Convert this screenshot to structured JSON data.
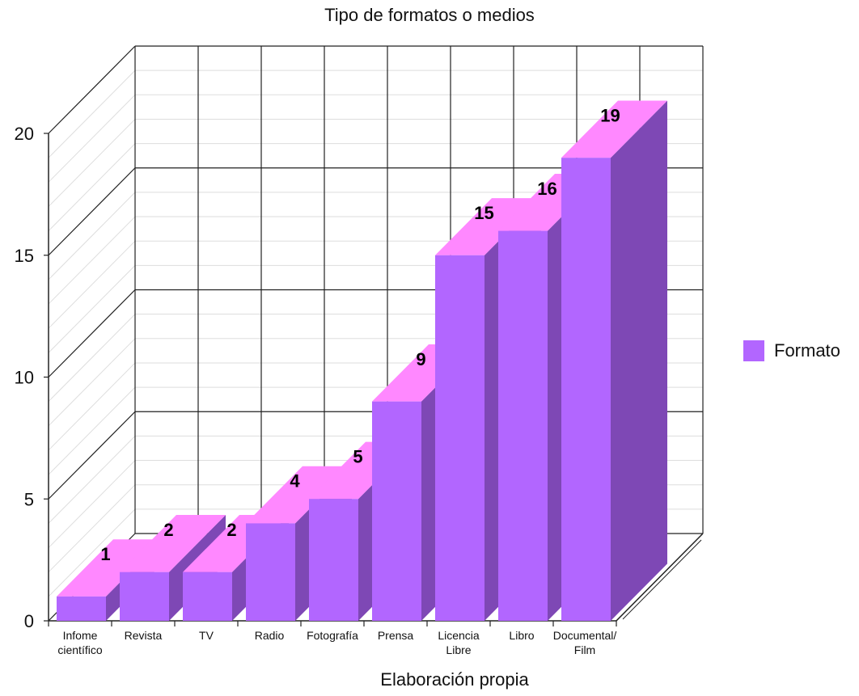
{
  "chart_data": {
    "type": "bar",
    "title": "Tipo de formatos o medios",
    "xlabel": "Elaboración propia",
    "ylabel": "",
    "ylim": [
      0,
      20
    ],
    "yticks": [
      0,
      5,
      10,
      15,
      20
    ],
    "grid": true,
    "legend_position": "right",
    "categories": [
      [
        "Infome",
        "científico"
      ],
      [
        "Revista"
      ],
      [
        "TV"
      ],
      [
        "Radio"
      ],
      [
        "Fotografía"
      ],
      [
        "Prensa"
      ],
      [
        "Licencia",
        "Libre"
      ],
      [
        "Libro"
      ],
      [
        "Documental/",
        "Film"
      ]
    ],
    "series": [
      {
        "name": "Formato",
        "values": [
          1,
          2,
          2,
          4,
          5,
          9,
          15,
          16,
          19
        ],
        "data_labels": [
          "1",
          "2",
          "2",
          "4",
          "5",
          "9",
          "15",
          "16",
          "19"
        ]
      }
    ],
    "colors": {
      "front": "#b266ff",
      "top": "#ff88ff",
      "side": "#7e48b5"
    }
  }
}
